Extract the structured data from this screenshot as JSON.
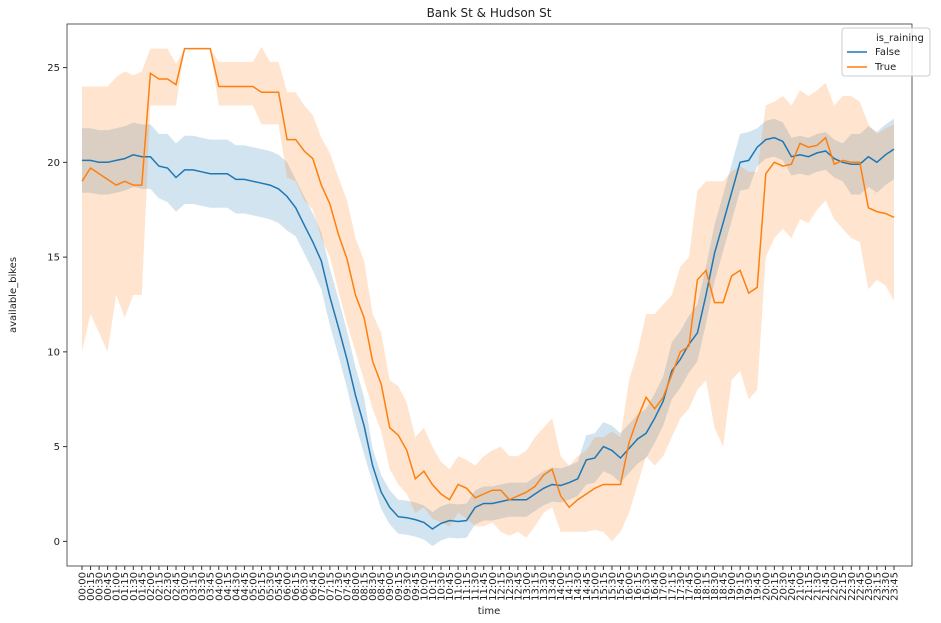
{
  "chart_data": {
    "type": "line",
    "title": "Bank St & Hudson St",
    "x_label": "time",
    "y_label": "available_bikes",
    "legend_title": "is_raining",
    "legend_position": "upper right",
    "categories": [
      "00:00",
      "00:15",
      "00:30",
      "00:45",
      "01:00",
      "01:15",
      "01:30",
      "01:45",
      "02:00",
      "02:15",
      "02:30",
      "02:45",
      "03:00",
      "03:15",
      "03:30",
      "03:45",
      "04:00",
      "04:15",
      "04:30",
      "04:45",
      "05:00",
      "05:15",
      "05:30",
      "05:45",
      "06:00",
      "06:15",
      "06:30",
      "06:45",
      "07:00",
      "07:15",
      "07:30",
      "07:45",
      "08:00",
      "08:15",
      "08:30",
      "08:45",
      "09:00",
      "09:15",
      "09:30",
      "09:45",
      "10:00",
      "10:15",
      "10:30",
      "10:45",
      "11:00",
      "11:15",
      "11:30",
      "11:45",
      "12:00",
      "12:15",
      "12:30",
      "12:45",
      "13:00",
      "13:15",
      "13:30",
      "13:45",
      "14:00",
      "14:15",
      "14:30",
      "14:45",
      "15:00",
      "15:15",
      "15:30",
      "15:45",
      "16:00",
      "16:15",
      "16:30",
      "16:45",
      "17:00",
      "17:15",
      "17:30",
      "17:45",
      "18:00",
      "18:15",
      "18:30",
      "18:45",
      "19:00",
      "19:15",
      "19:30",
      "19:45",
      "20:00",
      "20:15",
      "20:30",
      "20:45",
      "21:00",
      "21:15",
      "21:30",
      "21:45",
      "22:00",
      "22:15",
      "22:30",
      "22:45",
      "23:00",
      "23:15",
      "23:30",
      "23:45"
    ],
    "ylim": [
      -1.3,
      27.3
    ],
    "yticks": [
      0,
      5,
      10,
      15,
      20,
      25
    ],
    "series": [
      {
        "name": "False",
        "color": "#1f77b4",
        "values": [
          20.1,
          20.1,
          20.0,
          20.0,
          20.1,
          20.2,
          20.4,
          20.3,
          20.3,
          19.8,
          19.7,
          19.2,
          19.6,
          19.6,
          19.5,
          19.4,
          19.4,
          19.4,
          19.1,
          19.1,
          19.0,
          18.9,
          18.8,
          18.6,
          18.2,
          17.6,
          16.7,
          15.8,
          14.8,
          12.9,
          11.3,
          9.6,
          7.7,
          6.1,
          4.0,
          2.6,
          1.8,
          1.3,
          1.25,
          1.15,
          1.0,
          0.65,
          0.95,
          1.1,
          1.05,
          1.1,
          1.8,
          2.0,
          2.0,
          2.1,
          2.2,
          2.2,
          2.2,
          2.5,
          2.8,
          3.0,
          2.95,
          3.1,
          3.3,
          4.3,
          4.4,
          5.0,
          4.8,
          4.4,
          4.9,
          5.4,
          5.7,
          6.5,
          7.4,
          9.0,
          9.6,
          10.4,
          11.0,
          13.0,
          15.2,
          16.8,
          18.4,
          20.0,
          20.1,
          20.8,
          21.2,
          21.3,
          21.1,
          20.3,
          20.4,
          20.3,
          20.5,
          20.6,
          20.2,
          20.0,
          19.9,
          19.9,
          20.3,
          20.0,
          20.4,
          20.7
        ],
        "ci_lower": [
          18.4,
          18.4,
          18.3,
          18.3,
          18.4,
          18.5,
          18.7,
          18.6,
          18.6,
          18.1,
          17.9,
          17.4,
          17.8,
          17.8,
          17.7,
          17.6,
          17.6,
          17.6,
          17.3,
          17.3,
          17.2,
          17.1,
          17.0,
          16.8,
          16.4,
          16.1,
          15.2,
          14.3,
          13.3,
          11.4,
          9.8,
          8.1,
          6.2,
          4.6,
          3.1,
          1.7,
          0.9,
          0.4,
          0.35,
          0.25,
          0.1,
          -0.25,
          0.05,
          0.2,
          0.15,
          0.2,
          0.9,
          1.1,
          1.1,
          1.2,
          1.3,
          1.3,
          1.3,
          1.6,
          1.9,
          2.1,
          2.05,
          2.2,
          2.4,
          3.0,
          3.1,
          3.7,
          3.5,
          3.1,
          3.6,
          4.1,
          4.4,
          5.2,
          6.1,
          7.5,
          8.1,
          8.9,
          9.5,
          11.5,
          13.7,
          15.3,
          16.9,
          18.5,
          18.6,
          19.8,
          20.2,
          20.3,
          20.1,
          19.3,
          19.4,
          19.3,
          19.5,
          19.6,
          19.2,
          19.0,
          18.3,
          18.3,
          18.7,
          18.4,
          18.8,
          19.1
        ],
        "ci_upper": [
          21.8,
          21.8,
          21.7,
          21.7,
          21.8,
          21.9,
          22.1,
          22.0,
          22.0,
          21.5,
          21.5,
          21.0,
          21.4,
          21.4,
          21.3,
          21.2,
          21.2,
          21.2,
          20.9,
          20.9,
          20.8,
          20.7,
          20.6,
          20.4,
          20.0,
          19.1,
          18.2,
          17.3,
          16.3,
          14.4,
          12.8,
          11.1,
          9.2,
          7.6,
          4.9,
          3.5,
          2.7,
          2.2,
          2.15,
          2.05,
          1.9,
          1.55,
          1.85,
          2.0,
          1.95,
          2.0,
          2.7,
          2.9,
          2.9,
          3.0,
          3.1,
          3.1,
          3.1,
          3.4,
          3.7,
          3.9,
          3.85,
          4.0,
          4.2,
          5.6,
          5.7,
          6.3,
          6.1,
          5.7,
          6.2,
          6.7,
          7.0,
          7.8,
          8.7,
          10.5,
          11.1,
          11.9,
          12.5,
          14.5,
          16.7,
          18.3,
          19.9,
          21.5,
          21.6,
          21.8,
          22.2,
          22.3,
          22.1,
          21.3,
          21.4,
          21.3,
          21.5,
          21.6,
          21.2,
          21.0,
          21.5,
          21.5,
          21.9,
          21.6,
          22.0,
          22.3
        ]
      },
      {
        "name": "True",
        "color": "#ff7f0e",
        "values": [
          19.0,
          19.7,
          19.4,
          19.1,
          18.8,
          19.0,
          18.8,
          18.8,
          24.7,
          24.4,
          24.4,
          24.1,
          26.0,
          26.0,
          26.0,
          26.0,
          24.0,
          24.0,
          24.0,
          24.0,
          24.0,
          23.7,
          23.7,
          23.7,
          21.2,
          21.2,
          20.6,
          20.2,
          18.8,
          17.8,
          16.2,
          14.9,
          13.0,
          11.8,
          9.5,
          8.3,
          6.0,
          5.6,
          4.8,
          3.3,
          3.7,
          3.0,
          2.5,
          2.2,
          3.0,
          2.8,
          2.3,
          2.5,
          2.7,
          2.7,
          2.2,
          2.4,
          2.6,
          2.9,
          3.5,
          3.8,
          2.4,
          1.8,
          2.2,
          2.5,
          2.8,
          3.0,
          3.0,
          3.0,
          5.2,
          6.5,
          7.6,
          7.0,
          7.6,
          8.8,
          10.0,
          10.3,
          13.8,
          14.3,
          12.6,
          12.6,
          14.0,
          14.3,
          13.1,
          13.4,
          19.4,
          20.0,
          19.8,
          19.9,
          21.0,
          20.8,
          20.9,
          21.3,
          19.9,
          20.1,
          20.0,
          20.0,
          17.6,
          17.4,
          17.3,
          17.1
        ],
        "ci_lower": [
          10.0,
          12.0,
          11.0,
          10.0,
          13.0,
          11.8,
          13.0,
          13.0,
          23.0,
          23.0,
          23.0,
          23.0,
          26.0,
          26.0,
          26.0,
          26.0,
          23.0,
          23.0,
          23.0,
          23.0,
          23.0,
          22.0,
          22.0,
          22.0,
          19.2,
          19.0,
          18.0,
          17.5,
          16.0,
          15.0,
          13.2,
          11.5,
          10.0,
          8.5,
          7.0,
          5.8,
          3.8,
          3.0,
          2.5,
          1.5,
          1.8,
          1.2,
          1.0,
          0.8,
          1.5,
          1.2,
          0.8,
          0.8,
          1.0,
          0.5,
          0.3,
          0.5,
          0.2,
          0.8,
          1.5,
          1.8,
          0.5,
          0.5,
          0.5,
          0.5,
          0.6,
          0.5,
          0.0,
          0.5,
          1.5,
          3.0,
          4.5,
          4.0,
          4.5,
          5.5,
          6.5,
          7.0,
          8.0,
          8.5,
          6.0,
          5.0,
          8.5,
          9.0,
          7.5,
          8.0,
          15.0,
          16.0,
          16.5,
          16.0,
          17.0,
          16.8,
          17.5,
          18.0,
          17.0,
          16.5,
          16.0,
          15.8,
          13.3,
          13.8,
          13.5,
          12.7
        ],
        "ci_upper": [
          24.0,
          24.0,
          24.0,
          24.0,
          24.5,
          24.8,
          24.6,
          24.8,
          26.0,
          26.0,
          26.0,
          25.2,
          26.0,
          26.0,
          26.0,
          26.0,
          25.3,
          25.3,
          25.3,
          25.3,
          25.3,
          26.1,
          25.3,
          25.3,
          23.7,
          23.7,
          23.0,
          22.5,
          21.3,
          20.5,
          19.2,
          18.0,
          16.0,
          14.8,
          12.0,
          11.0,
          8.5,
          8.2,
          7.3,
          5.5,
          6.0,
          5.0,
          4.2,
          3.8,
          4.5,
          4.3,
          4.0,
          4.5,
          4.8,
          5.0,
          4.5,
          4.5,
          4.8,
          5.5,
          6.0,
          6.5,
          4.5,
          4.0,
          4.5,
          4.8,
          5.5,
          5.5,
          5.8,
          5.5,
          8.5,
          10.0,
          12.0,
          12.0,
          12.5,
          13.0,
          14.5,
          15.0,
          18.5,
          19.0,
          19.0,
          19.0,
          19.5,
          19.8,
          19.5,
          19.5,
          23.0,
          23.2,
          23.5,
          23.0,
          23.8,
          23.5,
          23.8,
          24.2,
          23.0,
          23.5,
          23.5,
          23.2,
          22.0,
          21.5,
          21.8,
          22.0
        ]
      }
    ]
  }
}
